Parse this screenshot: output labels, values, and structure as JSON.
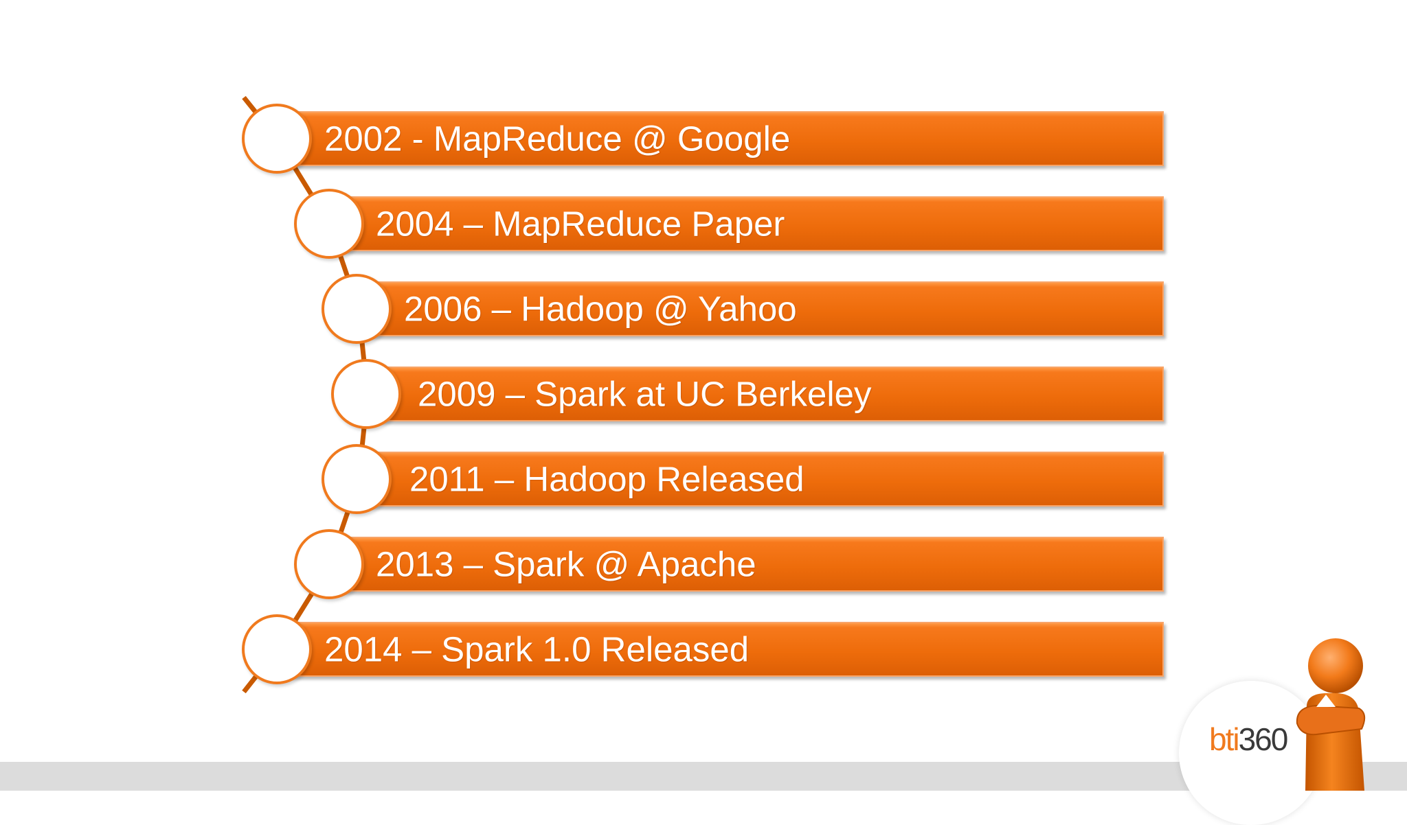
{
  "timeline": {
    "events": [
      {
        "label": "2002 - MapReduce @ Google"
      },
      {
        "label": "2004 – MapReduce Paper"
      },
      {
        "label": "2006 – Hadoop @ Yahoo"
      },
      {
        "label": "2009 – Spark at UC Berkeley"
      },
      {
        "label": "2011 – Hadoop Released"
      },
      {
        "label": "2013 – Spark @ Apache"
      },
      {
        "label": "2014 – Spark 1.0 Released"
      }
    ]
  },
  "logo": {
    "brand": "bti",
    "suffix": "360"
  },
  "colors": {
    "accent": "#ee6c0b",
    "node_border": "#f07a1e",
    "line": "#c95a00"
  }
}
